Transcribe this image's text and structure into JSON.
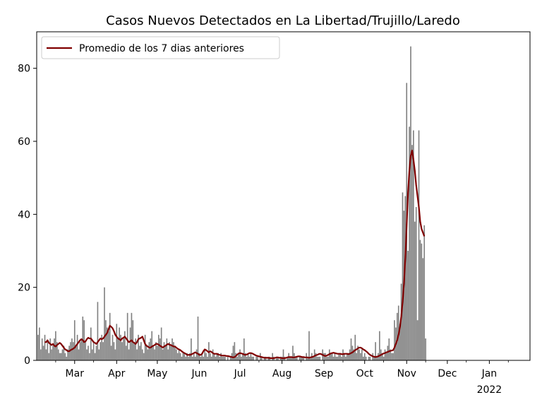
{
  "chart_data": {
    "type": "bar",
    "title": "Casos Nuevos Detectados en La Libertad/Trujillo/Laredo",
    "xlabel": "",
    "ylabel": "",
    "x_range": [
      "2021-02-01",
      "2022-01-31"
    ],
    "ylim": [
      0,
      90
    ],
    "y_ticks": [
      0,
      20,
      40,
      60,
      80
    ],
    "x_ticks": [
      {
        "date": "2021-03-01",
        "label": "Mar"
      },
      {
        "date": "2021-04-01",
        "label": "Apr"
      },
      {
        "date": "2021-05-01",
        "label": "May"
      },
      {
        "date": "2021-06-01",
        "label": "Jun"
      },
      {
        "date": "2021-07-01",
        "label": "Jul"
      },
      {
        "date": "2021-08-01",
        "label": "Aug"
      },
      {
        "date": "2021-09-01",
        "label": "Sep"
      },
      {
        "date": "2021-10-01",
        "label": "Oct"
      },
      {
        "date": "2021-11-01",
        "label": "Nov"
      },
      {
        "date": "2021-12-01",
        "label": "Dec"
      },
      {
        "date": "2022-01-01",
        "label": "Jan",
        "sublabel": "2022"
      }
    ],
    "grid": false,
    "legend_position": "top-left",
    "bar_series": {
      "color": "#808080",
      "values": [
        7,
        9,
        3,
        6,
        4,
        7,
        3,
        5,
        2,
        6,
        3,
        4,
        6,
        8,
        5,
        3,
        2,
        2,
        3,
        4,
        2,
        1,
        3,
        4,
        5,
        6,
        5,
        11,
        4,
        7,
        3,
        5,
        6,
        12,
        11,
        5,
        3,
        4,
        2,
        9,
        3,
        5,
        2,
        4,
        16,
        3,
        5,
        7,
        5,
        20,
        11,
        9,
        8,
        13,
        4,
        7,
        5,
        3,
        10,
        6,
        9,
        7,
        5,
        6,
        8,
        4,
        13,
        3,
        9,
        13,
        11,
        5,
        6,
        3,
        7,
        4,
        5,
        3,
        2,
        7,
        4,
        3,
        5,
        6,
        8,
        4,
        3,
        5,
        4,
        7,
        6,
        9,
        3,
        5,
        4,
        6,
        3,
        5,
        4,
        6,
        5,
        4,
        3,
        2,
        3,
        2,
        1,
        2,
        2,
        1,
        2,
        1,
        2,
        6,
        1,
        2,
        1,
        3,
        12,
        2,
        1,
        2,
        1,
        3,
        2,
        1,
        5,
        2,
        1,
        3,
        2,
        1,
        2,
        2,
        1,
        2,
        1,
        1,
        1,
        0,
        1,
        0,
        1,
        2,
        4,
        5,
        2,
        1,
        2,
        3,
        1,
        2,
        6,
        2,
        1,
        2,
        1,
        2,
        1,
        1,
        0,
        1,
        1,
        0,
        2,
        1,
        0,
        1,
        1,
        0,
        1,
        1,
        0,
        2,
        1,
        0,
        1,
        1,
        0,
        1,
        1,
        3,
        1,
        0,
        1,
        2,
        1,
        1,
        4,
        2,
        1,
        1,
        0,
        1,
        1,
        1,
        1,
        0,
        2,
        1,
        8,
        1,
        2,
        1,
        3,
        2,
        1,
        1,
        1,
        0,
        3,
        2,
        2,
        1,
        1,
        3,
        2,
        2,
        1,
        2,
        1,
        1,
        2,
        2,
        1,
        3,
        2,
        1,
        2,
        2,
        3,
        6,
        4,
        3,
        7,
        2,
        4,
        3,
        2,
        3,
        1,
        2,
        1,
        0,
        1,
        1,
        0,
        2,
        1,
        5,
        1,
        2,
        8,
        3,
        2,
        1,
        3,
        2,
        4,
        6,
        3,
        2,
        2,
        11,
        9,
        13,
        15,
        10,
        21,
        46,
        41,
        45,
        76,
        30,
        64,
        86,
        59,
        63,
        38,
        42,
        11,
        63,
        33,
        32,
        28,
        37,
        6
      ]
    },
    "line_series": {
      "name": "Promedio de los 7 dias anteriores",
      "color": "#800000",
      "start_date": "2021-02-07",
      "values": [
        5.0,
        5.0,
        5.5,
        4.8,
        4.5,
        4.2,
        4.5,
        4.0,
        3.8,
        4.2,
        4.5,
        4.8,
        4.5,
        4.0,
        3.5,
        3.0,
        2.8,
        2.5,
        2.5,
        2.8,
        3.0,
        3.2,
        3.5,
        4.0,
        4.5,
        5.0,
        5.5,
        5.8,
        5.5,
        5.0,
        5.2,
        5.8,
        6.2,
        6.0,
        6.0,
        5.5,
        5.0,
        4.8,
        4.5,
        5.0,
        5.5,
        6.0,
        5.8,
        6.0,
        6.5,
        7.0,
        7.5,
        8.5,
        9.5,
        9.2,
        8.8,
        8.0,
        7.0,
        6.5,
        6.0,
        5.8,
        5.5,
        6.0,
        6.2,
        6.5,
        6.0,
        5.5,
        5.0,
        5.2,
        5.5,
        5.0,
        4.8,
        4.5,
        5.0,
        5.8,
        6.0,
        6.2,
        6.5,
        5.5,
        4.5,
        4.0,
        3.8,
        3.5,
        3.5,
        3.8,
        4.0,
        4.2,
        4.5,
        4.5,
        4.3,
        4.0,
        3.8,
        3.5,
        3.8,
        4.0,
        4.3,
        4.5,
        4.3,
        4.2,
        4.0,
        3.8,
        3.8,
        3.5,
        3.2,
        3.0,
        2.8,
        2.5,
        2.2,
        2.0,
        1.8,
        1.5,
        1.5,
        1.5,
        1.6,
        1.8,
        2.0,
        2.2,
        2.0,
        1.8,
        1.5,
        1.5,
        1.8,
        2.5,
        3.0,
        2.8,
        2.5,
        2.2,
        2.5,
        2.3,
        2.0,
        1.8,
        1.8,
        1.8,
        1.6,
        1.5,
        1.4,
        1.3,
        1.3,
        1.3,
        1.2,
        1.2,
        1.1,
        1.0,
        0.9,
        0.8,
        0.9,
        1.2,
        1.6,
        1.9,
        2.0,
        1.9,
        1.8,
        1.6,
        1.5,
        1.6,
        1.8,
        2.0,
        2.0,
        1.9,
        1.7,
        1.5,
        1.3,
        1.2,
        1.1,
        1.0,
        0.9,
        0.8,
        0.7,
        0.7,
        0.7,
        0.7,
        0.6,
        0.6,
        0.6,
        0.6,
        0.7,
        0.8,
        0.8,
        0.7,
        0.7,
        0.6,
        0.6,
        0.6,
        0.7,
        0.8,
        0.9,
        0.9,
        0.9,
        0.8,
        0.8,
        0.9,
        1.0,
        1.1,
        1.1,
        1.0,
        0.9,
        0.9,
        0.8,
        0.8,
        0.8,
        0.7,
        0.8,
        0.9,
        1.0,
        1.2,
        1.4,
        1.5,
        1.7,
        1.8,
        1.7,
        1.5,
        1.3,
        1.2,
        1.3,
        1.5,
        1.7,
        1.9,
        2.0,
        2.1,
        2.0,
        1.9,
        1.8,
        1.8,
        1.8,
        1.7,
        1.7,
        1.8,
        1.8,
        1.8,
        1.7,
        1.8,
        2.0,
        2.2,
        2.5,
        2.8,
        3.0,
        3.3,
        3.5,
        3.5,
        3.3,
        3.0,
        2.8,
        2.5,
        2.2,
        1.8,
        1.5,
        1.3,
        1.1,
        1.0,
        0.9,
        1.0,
        1.1,
        1.3,
        1.5,
        1.7,
        1.9,
        2.0,
        2.2,
        2.3,
        2.5,
        2.6,
        2.7,
        2.8,
        3.5,
        4.5,
        5.5,
        7.0,
        9.0,
        12.0,
        16.0,
        21.0,
        28.0,
        37.0,
        46.0,
        52.0,
        56.0,
        57.5,
        55.0,
        52.0,
        48.0,
        45.0,
        42.0,
        38.0,
        36.0,
        35.0,
        34.0
      ]
    }
  }
}
